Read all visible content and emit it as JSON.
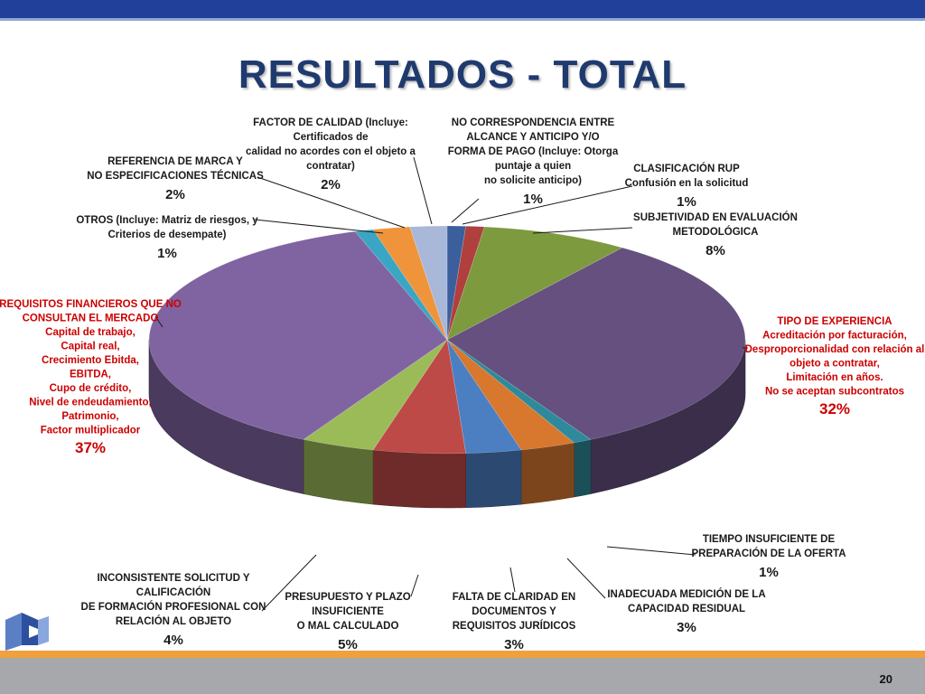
{
  "title": "RESULTADOS - TOTAL",
  "slide_number": "20",
  "colors": {
    "header": "#21409a",
    "title": "#1f3a6e",
    "highlight": "#cc0000",
    "text": "#1a1a1a"
  },
  "chart_data": {
    "type": "pie",
    "title": "",
    "slices": [
      {
        "id": "no-correspondencia",
        "lines": [
          "NO CORRESPONDENCIA ENTRE",
          "ALCANCE Y ANTICIPO Y/O",
          "FORMA DE PAGO (Incluye: Otorga",
          "puntaje a quien",
          "no solicite anticipo)"
        ],
        "percent_label": "1%",
        "value": 1,
        "color": "#3a5f9c",
        "highlight": false
      },
      {
        "id": "clasificacion-rup",
        "lines": [
          "CLASIFICACIÓN RUP",
          "Confusión en la solicitud"
        ],
        "percent_label": "1%",
        "value": 1,
        "color": "#b0403d",
        "highlight": false
      },
      {
        "id": "subjetividad",
        "lines": [
          "SUBJETIVIDAD EN EVALUACIÓN",
          "METODOLÓGICA"
        ],
        "percent_label": "8%",
        "value": 8,
        "color": "#7d9a3f",
        "highlight": false
      },
      {
        "id": "tipo-experiencia",
        "lines": [
          "TIPO DE EXPERIENCIA",
          "Acreditación por facturación,",
          "Desproporcionalidad con relación al",
          "objeto a contratar,",
          "Limitación en años.",
          "No se aceptan subcontratos"
        ],
        "percent_label": "32%",
        "value": 32,
        "color": "#65507f",
        "highlight": true
      },
      {
        "id": "tiempo-insuficiente",
        "lines": [
          "TIEMPO INSUFICIENTE DE",
          "PREPARACIÓN DE LA OFERTA"
        ],
        "percent_label": "1%",
        "value": 1,
        "color": "#2e8a9a",
        "highlight": false
      },
      {
        "id": "inadecuada-medicion",
        "lines": [
          "INADECUADA MEDICIÓN DE LA",
          "CAPACIDAD RESIDUAL"
        ],
        "percent_label": "3%",
        "value": 3,
        "color": "#d8772e",
        "highlight": false
      },
      {
        "id": "falta-claridad",
        "lines": [
          "FALTA DE CLARIDAD EN",
          "DOCUMENTOS Y",
          "REQUISITOS JURÍDICOS"
        ],
        "percent_label": "3%",
        "value": 3,
        "color": "#4c7fc2",
        "highlight": false
      },
      {
        "id": "presupuesto",
        "lines": [
          "PRESUPUESTO Y PLAZO",
          "INSUFICIENTE",
          "O MAL CALCULADO"
        ],
        "percent_label": "5%",
        "value": 5,
        "color": "#bd4a47",
        "highlight": false
      },
      {
        "id": "inconsistente",
        "lines": [
          "INCONSISTENTE SOLICITUD Y",
          "CALIFICACIÓN",
          "DE FORMACIÓN PROFESIONAL CON",
          "RELACIÓN AL OBJETO"
        ],
        "percent_label": "4%",
        "value": 4,
        "color": "#9bbb59",
        "highlight": false
      },
      {
        "id": "requisitos-financieros",
        "lines": [
          "REQUISITOS FINANCIEROS QUE NO",
          "CONSULTAN EL MERCADO",
          "Capital de trabajo,",
          "Capital real,",
          "Crecimiento Ebitda,",
          "EBITDA,",
          "Cupo de crédito,",
          "Nivel de endeudamiento,",
          "Patrimonio,",
          "Factor multiplicador"
        ],
        "percent_label": "37%",
        "value": 37,
        "color": "#8064a2",
        "highlight": true
      },
      {
        "id": "otros",
        "lines": [
          "OTROS (Incluye: Matriz de riesgos, y",
          "Criterios de desempate)"
        ],
        "percent_label": "1%",
        "value": 1,
        "color": "#3aa6c4",
        "highlight": false
      },
      {
        "id": "referencia-marca",
        "lines": [
          "REFERENCIA DE MARCA Y",
          "NO ESPECIFICACIONES TÉCNICAS"
        ],
        "percent_label": "2%",
        "value": 2,
        "color": "#f0943c",
        "highlight": false
      },
      {
        "id": "factor-calidad",
        "lines": [
          "FACTOR DE CALIDAD (Incluye:",
          "Certificados de",
          "calidad no acordes con el objeto a",
          "contratar)"
        ],
        "percent_label": "2%",
        "value": 2,
        "color": "#a9b8d8",
        "highlight": false
      }
    ]
  }
}
